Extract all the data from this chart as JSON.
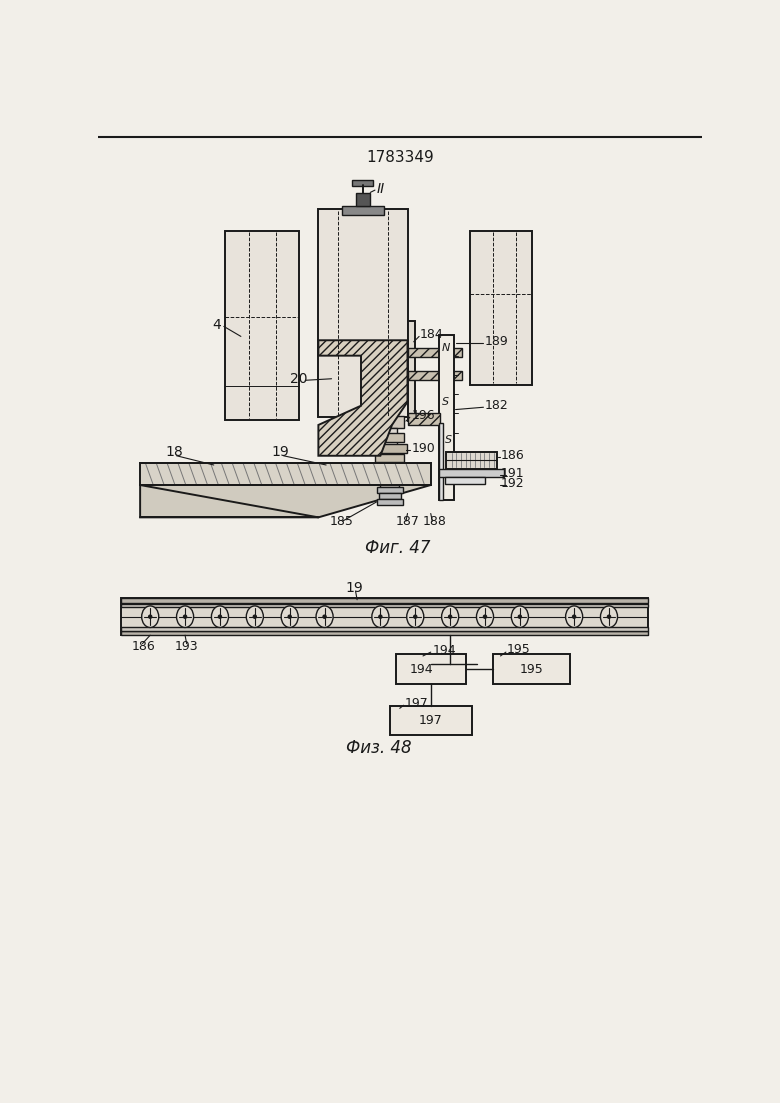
{
  "title": "1783349",
  "bg_color": "#f2efe9",
  "fig47_label": "Фиг. 47",
  "fig48_label": "Физ. 48",
  "line_color": "#1a1a1a",
  "fill_light": "#f0ece4",
  "fill_med": "#ddd8ce",
  "fill_dark": "#b0a898",
  "hatch_fill": "#c8c0b0"
}
